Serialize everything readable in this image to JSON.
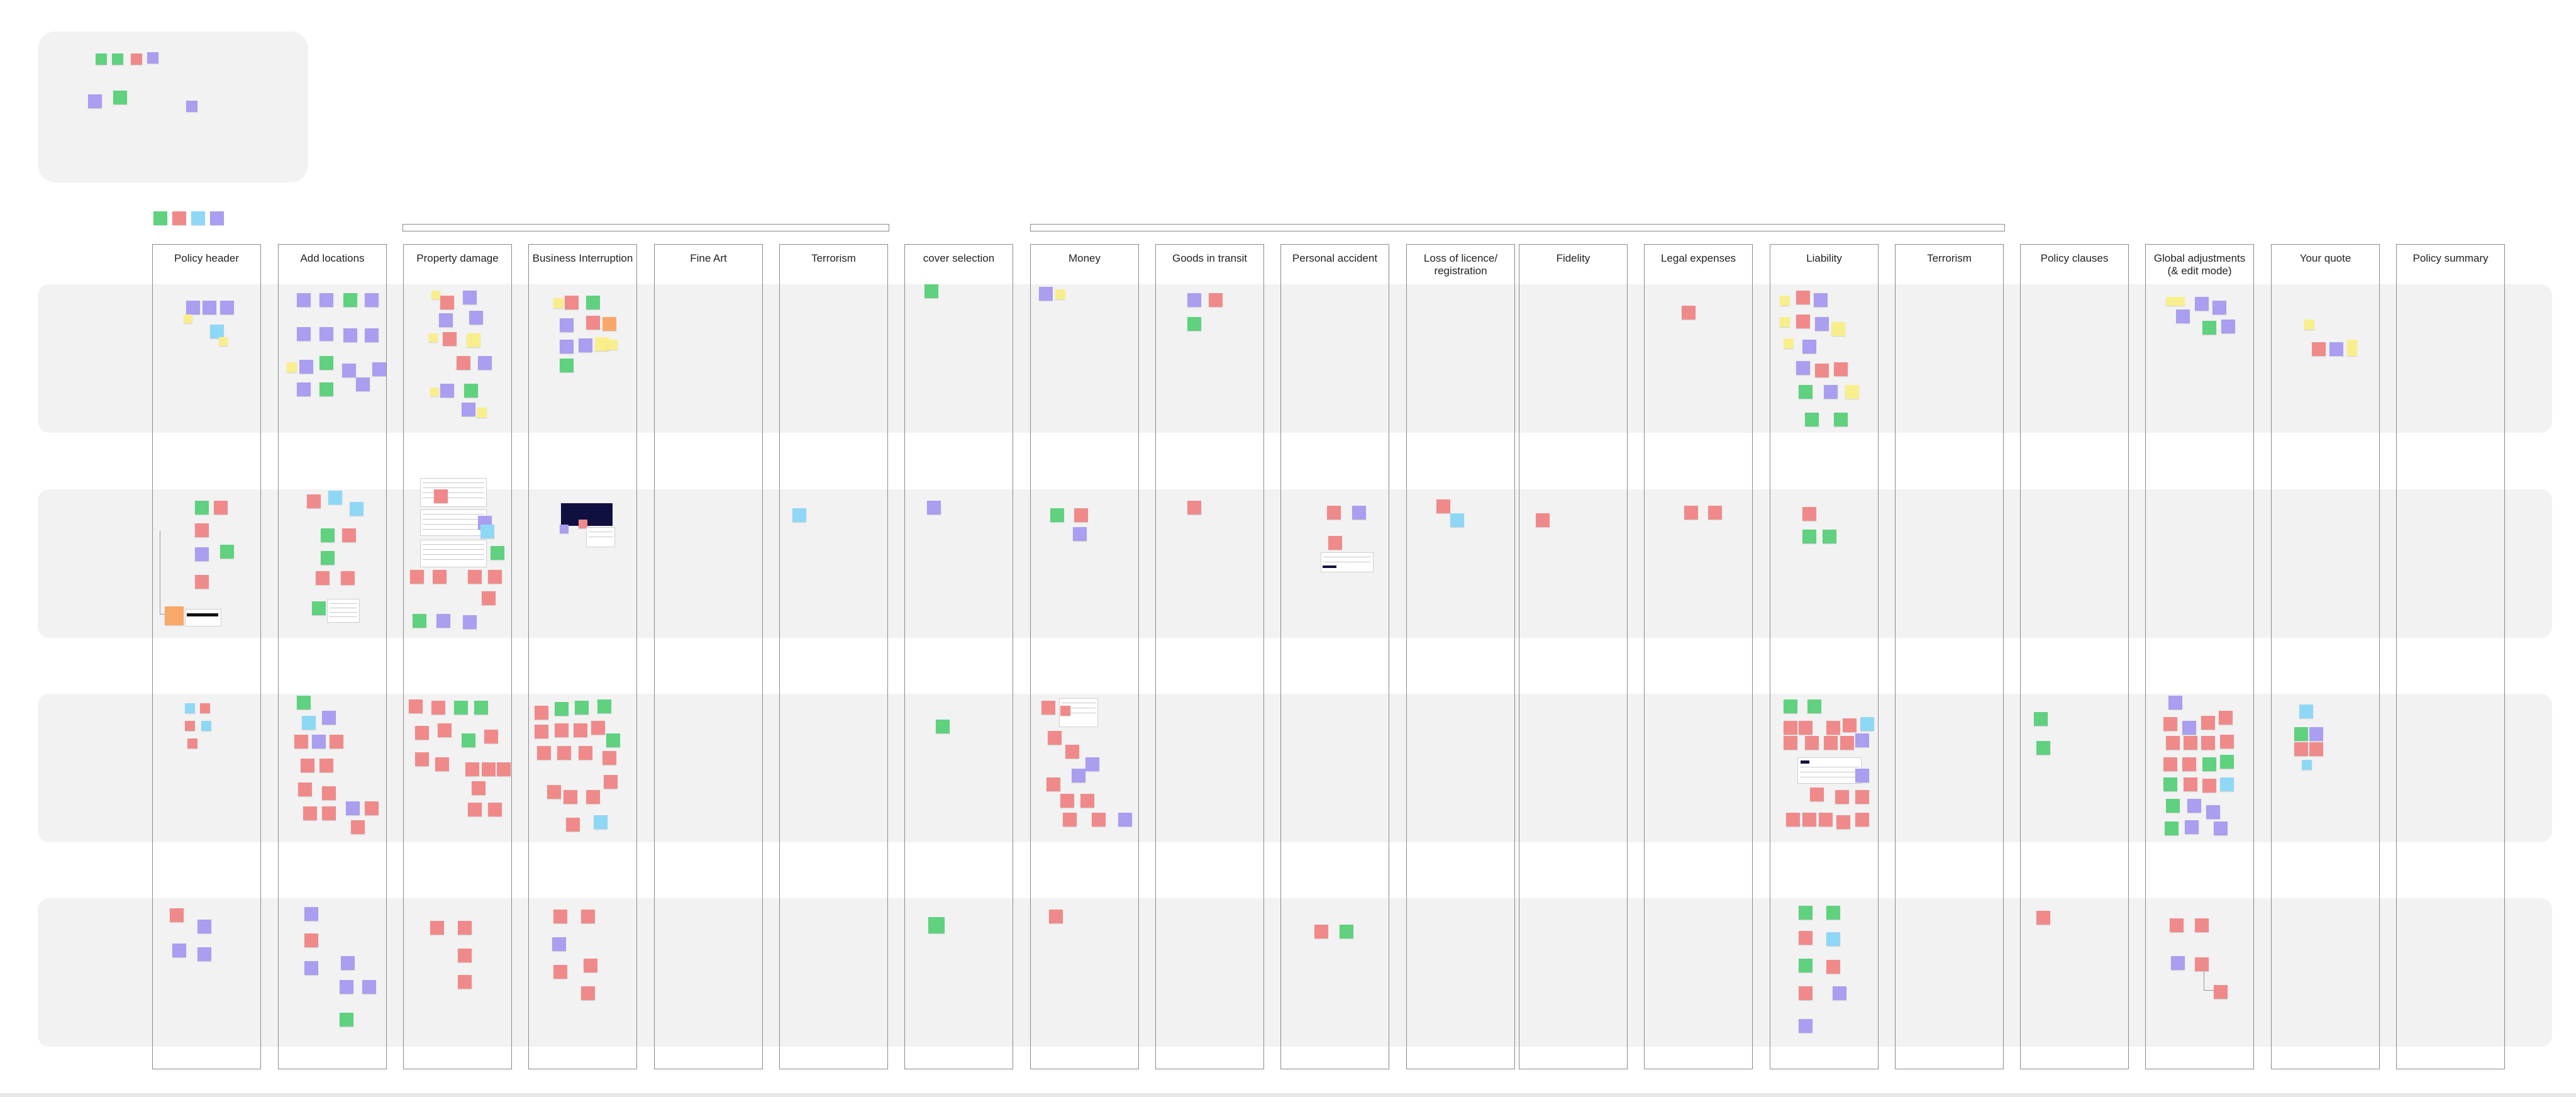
{
  "board": {
    "columns": [
      {
        "key": "policy_header",
        "title": "Policy header"
      },
      {
        "key": "add_locations",
        "title": "Add locations"
      },
      {
        "key": "property_damage",
        "title": "Property damage"
      },
      {
        "key": "business_interruption",
        "title": "Business Interruption"
      },
      {
        "key": "fine_art",
        "title": "Fine Art"
      },
      {
        "key": "terrorism_1",
        "title": "Terrorism"
      },
      {
        "key": "cover_selection",
        "title": "cover selection"
      },
      {
        "key": "money",
        "title": "Money"
      },
      {
        "key": "goods_in_transit",
        "title": "Goods in transit"
      },
      {
        "key": "personal_accident",
        "title": "Personal accident"
      },
      {
        "key": "loss_of_licence",
        "title": "Loss of licence/ registration"
      },
      {
        "key": "fidelity",
        "title": "Fidelity"
      },
      {
        "key": "legal_expenses",
        "title": "Legal expenses"
      },
      {
        "key": "liability",
        "title": "Liability"
      },
      {
        "key": "terrorism_2",
        "title": "Terrorism"
      },
      {
        "key": "policy_clauses",
        "title": "Policy clauses"
      },
      {
        "key": "global_adjustments",
        "title": "Global adjustments (& edit mode)"
      },
      {
        "key": "your_quote",
        "title": "Your quote"
      },
      {
        "key": "policy_summary",
        "title": "Policy summary"
      }
    ],
    "groups": [
      {
        "key": "group_a",
        "label": ""
      },
      {
        "key": "group_b",
        "label": ""
      }
    ]
  },
  "colors": {
    "green": "#5fd17f",
    "red": "#f08a8a",
    "purple": "#a99ef0",
    "blue": "#8fd8f5",
    "yellow": "#f8ef8c",
    "orange": "#f8a86a",
    "band": "#f2f2f2",
    "line": "#8a8a8a"
  },
  "legend_icons": [
    "green-sticky",
    "green-sticky",
    "red-sticky",
    "purple-sticky",
    "purple-sticky",
    "green-sticky",
    "purple-sticky"
  ],
  "key_icons": [
    "green-sticky",
    "red-sticky",
    "blue-sticky",
    "purple-sticky"
  ]
}
